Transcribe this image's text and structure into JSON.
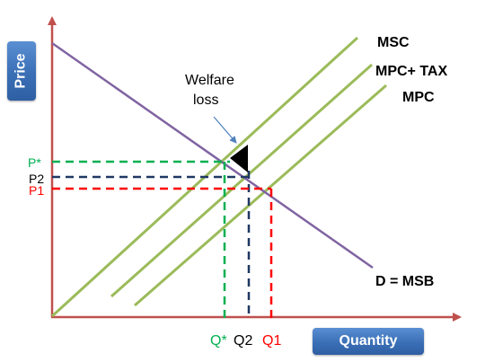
{
  "axes": {
    "y_title": "Price",
    "x_title": "Quantity"
  },
  "curves": {
    "msc": "MSC",
    "mpc_tax": "MPC+ TAX",
    "mpc": "MPC",
    "demand": "D = MSB"
  },
  "annotation": {
    "welfare_loss_line1": "Welfare",
    "welfare_loss_line2": "loss"
  },
  "price_levels": {
    "p_star": "P*",
    "p2": "P2",
    "p1": "P1"
  },
  "quantity_levels": {
    "q_star": "Q*",
    "q2": "Q2",
    "q1": "Q1"
  },
  "colors": {
    "axis": "#c0504d",
    "supply_lines": "#9bbb59",
    "demand_line": "#8064a2",
    "p_star_guide": "#00b050",
    "p2_guide": "#1f3864",
    "p1_guide": "#ff0000",
    "welfare_triangle": "#000000",
    "annotation_arrow": "#4f81bd",
    "axis_title_box": "#3a6fb6"
  }
}
